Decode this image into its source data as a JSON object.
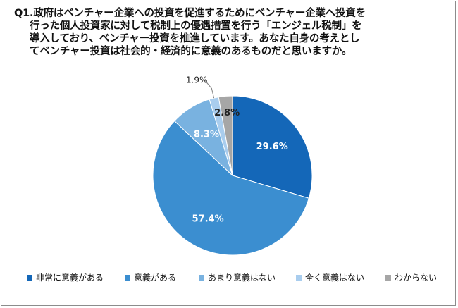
{
  "question": {
    "lines": [
      "Q1.政府はベンチャー企業への投資を促進するためにベンチャー企業へ投資を",
      "行った個人投資家に対して税制上の優遇措置を行う「エンジェル税制」を",
      "導入しており、ベンチャー投資を推進しています。あなた自身の考えとし",
      "てベンチャー投資は社会的・経済的に意義のあるものだと思いますか。"
    ]
  },
  "chart_data": {
    "type": "pie",
    "title": "",
    "start": "12 o'clock",
    "direction": "clockwise",
    "legend_position": "bottom",
    "categories": [
      "非常に意義がある",
      "意義がある",
      "あまり意義はない",
      "全く意義はない",
      "わからない"
    ],
    "values": [
      29.6,
      57.4,
      8.3,
      1.9,
      2.8
    ],
    "labels": [
      "29.6%",
      "57.4%",
      "8.3%",
      "1.9%",
      "2.8%"
    ],
    "colors": [
      "#1467b8",
      "#3b8ed0",
      "#79b2e0",
      "#a9cdee",
      "#a6a6a6"
    ],
    "label_colors": [
      "#ffffff",
      "#ffffff",
      "#ffffff",
      "#222222",
      "#222222"
    ]
  }
}
